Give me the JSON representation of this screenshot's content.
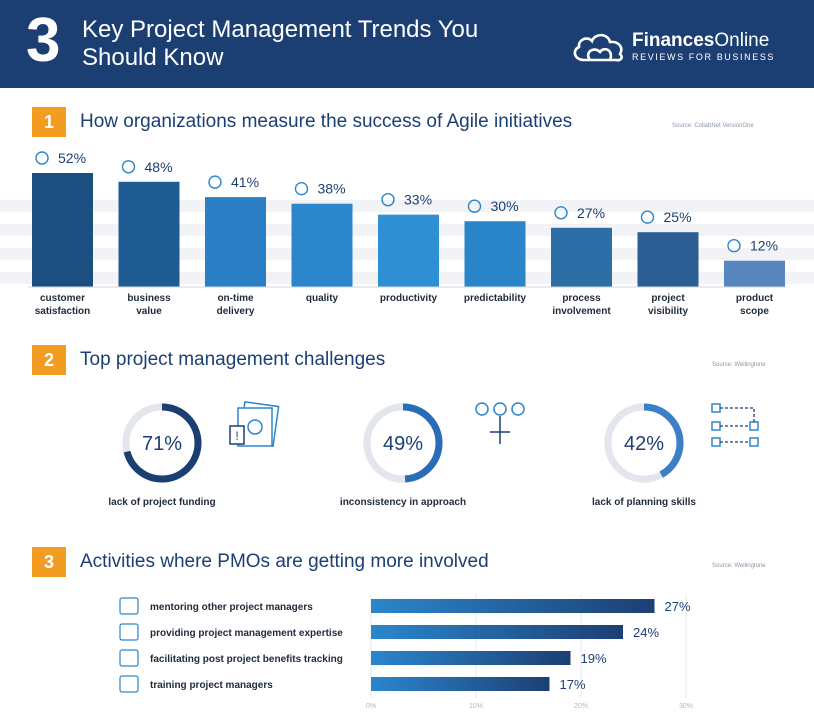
{
  "header": {
    "number": "3",
    "title": "Key Project Management Trends You Should Know",
    "brand_name_bold": "Finances",
    "brand_name_rest": "Online",
    "brand_tag": "REVIEWS FOR BUSINESS"
  },
  "sections": [
    {
      "number": "1",
      "title": "How organizations measure the success of Agile initiatives",
      "source": "Source: CollabNet VersionOne"
    },
    {
      "number": "2",
      "title": "Top project management challenges",
      "source": "Source: Wellingtone"
    },
    {
      "number": "3",
      "title": "Activities where PMOs are getting more involved",
      "source": "Source: Wellingtone"
    }
  ],
  "chart_data": [
    {
      "type": "bar",
      "categories": [
        [
          "customer",
          "satisfaction"
        ],
        [
          "business",
          "value"
        ],
        [
          "on-time",
          "delivery"
        ],
        [
          "quality"
        ],
        [
          "productivity"
        ],
        [
          "predictability"
        ],
        [
          "process",
          "involvement"
        ],
        [
          "project",
          "visibility"
        ],
        [
          "product",
          "scope"
        ]
      ],
      "values": [
        52,
        48,
        41,
        38,
        33,
        30,
        27,
        25,
        12
      ],
      "value_labels": [
        "52%",
        "48%",
        "41%",
        "38%",
        "33%",
        "30%",
        "27%",
        "25%",
        "12%"
      ],
      "ylim": [
        0,
        52
      ],
      "grid": true,
      "colors": [
        "#1b4f80",
        "#1f5c93",
        "#2a7fc4",
        "#2b86cc",
        "#2f8fd3",
        "#2a85c8",
        "#2c6ea6",
        "#2b5f93",
        "#5a86c0"
      ]
    },
    {
      "type": "pie",
      "items": [
        {
          "value": 71,
          "label": "71%",
          "caption": "lack of project funding",
          "color": "#1c3f73"
        },
        {
          "value": 49,
          "label": "49%",
          "caption": "inconsistency in approach",
          "color": "#2b6cb8"
        },
        {
          "value": 42,
          "label": "42%",
          "caption": "lack of planning skills",
          "color": "#3b7fc6"
        }
      ]
    },
    {
      "type": "bar",
      "orientation": "horizontal",
      "categories": [
        "mentoring other project managers",
        "providing project management expertise",
        "facilitating post project benefits tracking",
        "training project managers"
      ],
      "values": [
        27,
        24,
        19,
        17
      ],
      "value_labels": [
        "27%",
        "24%",
        "19%",
        "17%"
      ],
      "xlim": [
        0,
        30
      ],
      "ticks": [
        "0%",
        "10%",
        "20%",
        "30%"
      ]
    }
  ]
}
